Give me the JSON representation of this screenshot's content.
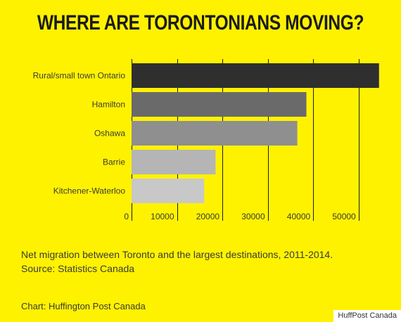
{
  "title": "WHERE ARE TORONTONIANS MOVING?",
  "caption_line1": "Net migration between Toronto and the largest destinations, 2011-2014.",
  "caption_line2": "Source: Statistics Canada",
  "credit": "Chart: Huffington Post Canada",
  "watermark": "HuffPost Canada",
  "colors": {
    "background": "#fff200",
    "gridline": "#1b1b1b",
    "label_text": "#3a3a3a"
  },
  "chart_data": {
    "type": "bar",
    "orientation": "horizontal",
    "categories": [
      "Rural/small town Ontario",
      "Hamilton",
      "Oshawa",
      "Barrie",
      "Kitchener-Waterloo"
    ],
    "values": [
      54500,
      38500,
      36500,
      18500,
      16000
    ],
    "bar_colors": [
      "#2f2f2f",
      "#6a6a6a",
      "#8f8f8f",
      "#b5b5b5",
      "#c8c8c8"
    ],
    "xticks": [
      0,
      10000,
      20000,
      30000,
      40000,
      50000
    ],
    "xlim": [
      0,
      55000
    ],
    "grid": true,
    "xlabel": "",
    "ylabel": ""
  }
}
